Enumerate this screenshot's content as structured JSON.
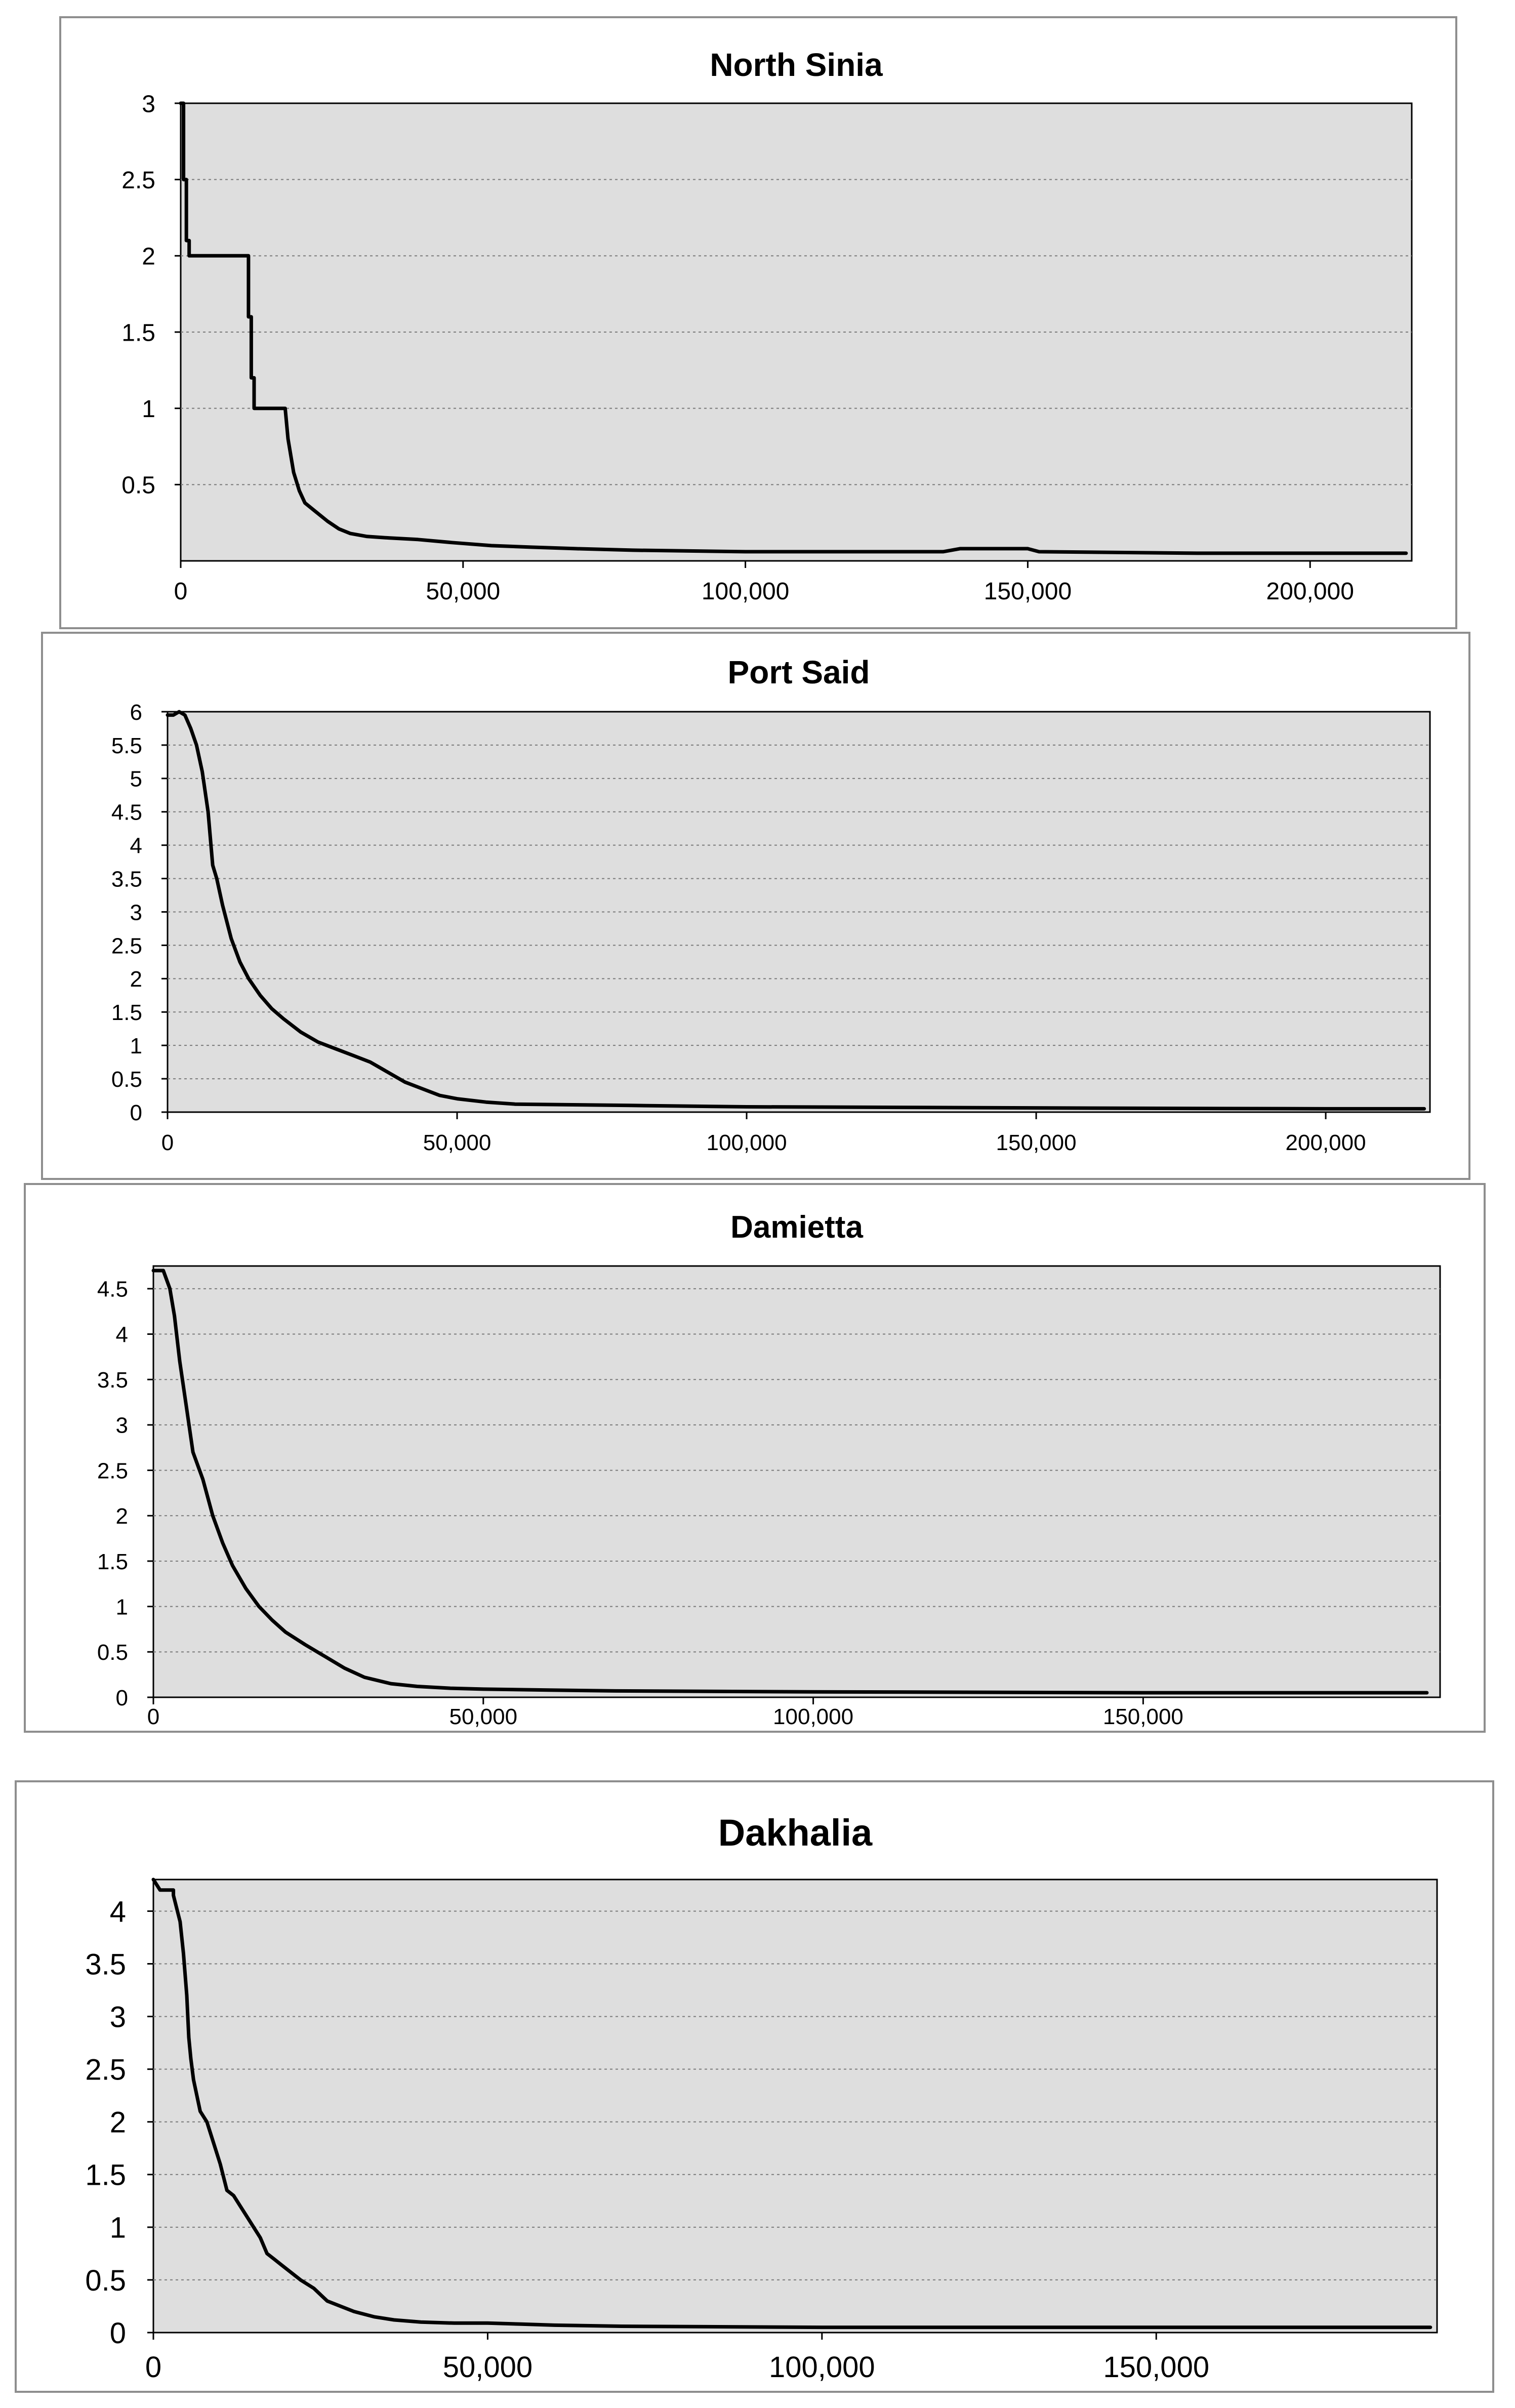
{
  "chart_data": [
    {
      "type": "line",
      "title": "North Sinia",
      "xlabel": "",
      "ylabel": "",
      "xlim": [
        0,
        218000
      ],
      "ylim": [
        0,
        3
      ],
      "x_ticks": [
        0,
        50000,
        100000,
        150000,
        200000
      ],
      "x_tick_labels": [
        "0",
        "50,000",
        "100,000",
        "150,000",
        "200,000"
      ],
      "y_ticks": [
        0.5,
        1,
        1.5,
        2,
        2.5,
        3
      ],
      "y_tick_labels": [
        "0.5",
        "1",
        "1.5",
        "2",
        "2.5",
        "3"
      ],
      "grid": true,
      "legend": "none",
      "colors": {
        "plot_bg": "#dedede",
        "line": "#000000",
        "grid": "#7a7a7a"
      },
      "series": [
        {
          "x": [
            0,
            500,
            500,
            1000,
            1000,
            1500,
            1500,
            12000,
            12000,
            12500,
            12500,
            13000,
            13000,
            18500,
            19000,
            20000,
            21000,
            22000,
            24000,
            26000,
            28000,
            30000,
            33000,
            37000,
            42000,
            48000,
            55000,
            62000,
            70000,
            80000,
            100000,
            135000,
            138000,
            150000,
            152000,
            180000,
            217000
          ],
          "y": [
            3,
            3,
            2.5,
            2.5,
            2.1,
            2.1,
            2,
            2,
            1.6,
            1.6,
            1.2,
            1.2,
            1,
            1,
            0.8,
            0.58,
            0.46,
            0.38,
            0.32,
            0.26,
            0.21,
            0.18,
            0.16,
            0.15,
            0.14,
            0.12,
            0.1,
            0.09,
            0.08,
            0.07,
            0.06,
            0.06,
            0.08,
            0.08,
            0.06,
            0.05,
            0.05
          ]
        }
      ]
    },
    {
      "type": "line",
      "title": "Port Said",
      "xlabel": "",
      "ylabel": "",
      "xlim": [
        0,
        218000
      ],
      "ylim": [
        0,
        6
      ],
      "x_ticks": [
        0,
        50000,
        100000,
        150000,
        200000
      ],
      "x_tick_labels": [
        "0",
        "50,000",
        "100,000",
        "150,000",
        "200,000"
      ],
      "y_ticks": [
        0,
        0.5,
        1,
        1.5,
        2,
        2.5,
        3,
        3.5,
        4,
        4.5,
        5,
        5.5,
        6
      ],
      "y_tick_labels": [
        "0",
        "0.5",
        "1",
        "1.5",
        "2",
        "2.5",
        "3",
        "3.5",
        "4",
        "4.5",
        "5",
        "5.5",
        "6"
      ],
      "grid": true,
      "legend": "none",
      "colors": {
        "plot_bg": "#dedede",
        "line": "#000000",
        "grid": "#7a7a7a"
      },
      "series": [
        {
          "x": [
            0,
            1000,
            2000,
            3000,
            4000,
            5000,
            6000,
            7000,
            7800,
            8500,
            9500,
            11000,
            12500,
            14000,
            16000,
            18000,
            20000,
            23000,
            26000,
            29000,
            32000,
            35000,
            38000,
            41000,
            44000,
            47000,
            50000,
            55000,
            60000,
            70000,
            80000,
            100000,
            130000,
            160000,
            200000,
            217000
          ],
          "y": [
            5.95,
            5.95,
            6,
            5.95,
            5.75,
            5.5,
            5.1,
            4.5,
            3.7,
            3.5,
            3.1,
            2.6,
            2.25,
            2.0,
            1.75,
            1.55,
            1.4,
            1.2,
            1.05,
            0.95,
            0.85,
            0.75,
            0.6,
            0.45,
            0.35,
            0.25,
            0.2,
            0.15,
            0.12,
            0.11,
            0.1,
            0.08,
            0.07,
            0.06,
            0.05,
            0.05
          ]
        }
      ]
    },
    {
      "type": "line",
      "title": "Damietta",
      "xlabel": "",
      "ylabel": "",
      "xlim": [
        0,
        195000
      ],
      "ylim": [
        0,
        4.75
      ],
      "x_ticks": [
        0,
        50000,
        100000,
        150000
      ],
      "x_tick_labels": [
        "0",
        "50,000",
        "100,000",
        "150,000"
      ],
      "y_ticks": [
        0,
        0.5,
        1,
        1.5,
        2,
        2.5,
        3,
        3.5,
        4,
        4.5
      ],
      "y_tick_labels": [
        "0",
        "0.5",
        "1",
        "1.5",
        "2",
        "2.5",
        "3",
        "3.5",
        "4",
        "4.5"
      ],
      "grid": true,
      "legend": "none",
      "colors": {
        "plot_bg": "#dedede",
        "line": "#000000",
        "grid": "#7a7a7a"
      },
      "series": [
        {
          "x": [
            0,
            1500,
            2500,
            3200,
            4000,
            5000,
            6000,
            7500,
            9000,
            10500,
            12000,
            14000,
            16000,
            18000,
            20000,
            23000,
            26000,
            29000,
            32000,
            36000,
            40000,
            45000,
            50000,
            60000,
            70000,
            100000,
            150000,
            193000
          ],
          "y": [
            4.7,
            4.7,
            4.5,
            4.2,
            3.7,
            3.2,
            2.7,
            2.4,
            2.0,
            1.7,
            1.45,
            1.2,
            1.0,
            0.85,
            0.72,
            0.58,
            0.45,
            0.32,
            0.22,
            0.15,
            0.12,
            0.1,
            0.09,
            0.08,
            0.07,
            0.06,
            0.05,
            0.05
          ]
        }
      ]
    },
    {
      "type": "line",
      "title": "Dakhalia",
      "xlabel": "",
      "ylabel": "",
      "xlim": [
        0,
        192000
      ],
      "ylim": [
        0,
        4.3
      ],
      "x_ticks": [
        0,
        50000,
        100000,
        150000
      ],
      "x_tick_labels": [
        "0",
        "50,000",
        "100,000",
        "150,000"
      ],
      "y_ticks": [
        0,
        0.5,
        1,
        1.5,
        2,
        2.5,
        3,
        3.5,
        4
      ],
      "y_tick_labels": [
        "0",
        "0.5",
        "1",
        "1.5",
        "2",
        "2.5",
        "3",
        "3.5",
        "4"
      ],
      "grid": true,
      "legend": "none",
      "colors": {
        "plot_bg": "#dedede",
        "line": "#000000",
        "grid": "#7a7a7a"
      },
      "series": [
        {
          "x": [
            0,
            1000,
            3000,
            3000,
            4000,
            4500,
            5000,
            5300,
            5600,
            6000,
            7000,
            8000,
            9000,
            10000,
            11000,
            12000,
            13000,
            14000,
            15000,
            16000,
            17000,
            18000,
            19000,
            20000,
            22000,
            24000,
            26000,
            28000,
            30000,
            33000,
            36000,
            40000,
            45000,
            50000,
            55000,
            60000,
            70000,
            100000,
            150000,
            191000
          ],
          "y": [
            4.3,
            4.2,
            4.2,
            4.15,
            3.9,
            3.6,
            3.2,
            2.8,
            2.6,
            2.4,
            2.1,
            2.0,
            1.8,
            1.6,
            1.35,
            1.3,
            1.2,
            1.1,
            1.0,
            0.9,
            0.75,
            0.7,
            0.65,
            0.6,
            0.5,
            0.42,
            0.3,
            0.25,
            0.2,
            0.15,
            0.12,
            0.1,
            0.09,
            0.09,
            0.08,
            0.07,
            0.06,
            0.05,
            0.05,
            0.05
          ]
        }
      ]
    }
  ]
}
